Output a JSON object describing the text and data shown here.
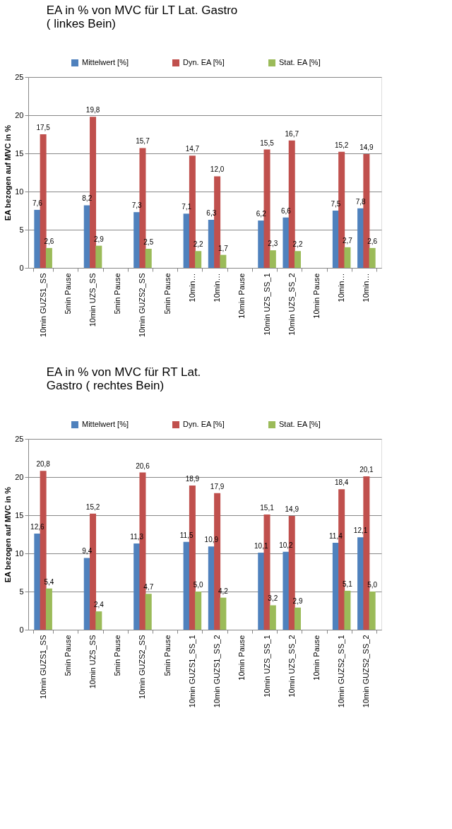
{
  "chart_data": [
    {
      "type": "bar",
      "title": "EA in % von MVC für LT Lat. Gastro ( linkes   Bein)",
      "ylabel": "EA bezogen auf MVC in %",
      "categories": [
        "10min GUZS1_SS",
        "5min Pause",
        "10min UZS_SS",
        "5min Pause",
        "10min GUZS2_SS",
        "5min Pause",
        "10min…",
        "10min…",
        "10min Pause",
        "10min UZS_SS_1",
        "10min UZS_SS_2",
        "10min Pause",
        "10min…",
        "10min…"
      ],
      "series": [
        {
          "name": "Mittelwert [%]",
          "color": "#4f81bd",
          "values": [
            7.6,
            null,
            8.2,
            null,
            7.3,
            null,
            7.1,
            6.3,
            null,
            6.2,
            6.6,
            null,
            7.5,
            7.8
          ],
          "value_labels": [
            "7,6",
            null,
            "8,2",
            null,
            "7,3",
            null,
            "7,1",
            "6,3",
            null,
            "6,2",
            "6,6",
            null,
            "7,5",
            "7,8"
          ]
        },
        {
          "name": "Dyn. EA [%]",
          "color": "#c0504d",
          "values": [
            17.5,
            null,
            19.8,
            null,
            15.7,
            null,
            14.7,
            12.0,
            null,
            15.5,
            16.7,
            null,
            15.2,
            14.9
          ],
          "value_labels": [
            "17,5",
            null,
            "19,8",
            null,
            "15,7",
            null,
            "14,7",
            "12,0",
            null,
            "15,5",
            "16,7",
            null,
            "15,2",
            "14,9"
          ]
        },
        {
          "name": "Stat. EA [%]",
          "color": "#9bbb59",
          "values": [
            2.6,
            null,
            2.9,
            null,
            2.5,
            null,
            2.2,
            1.7,
            null,
            2.3,
            2.2,
            null,
            2.7,
            2.6
          ],
          "value_labels": [
            "2,6",
            null,
            "2,9",
            null,
            "2,5",
            null,
            "2,2",
            "1,7",
            null,
            "2,3",
            "2,2",
            null,
            "2,7",
            "2,6"
          ]
        }
      ],
      "ylim": [
        0,
        25
      ],
      "yticks": [
        0,
        5,
        10,
        15,
        20,
        25
      ],
      "grid": "y",
      "legend": "top"
    },
    {
      "type": "bar",
      "title": "EA in % von MVC für RT Lat. Gastro ( rechtes   Bein)",
      "ylabel": "EA bezogen auf MVC in %",
      "categories": [
        "10min GUZS1_SS",
        "5min Pause",
        "10min UZS_SS",
        "5min Pause",
        "10min GUZS2_SS",
        "5min Pause",
        "10min GUZS1_SS_1",
        "10min GUZS1_SS_2",
        "10min Pause",
        "10min UZS_SS_1",
        "10min UZS_SS_2",
        "10min Pause",
        "10min GUZS2_SS_1",
        "10min GUZS2_SS_2"
      ],
      "series": [
        {
          "name": "Mittelwert [%]",
          "color": "#4f81bd",
          "values": [
            12.6,
            null,
            9.4,
            null,
            11.3,
            null,
            11.5,
            10.9,
            null,
            10.1,
            10.2,
            null,
            11.4,
            12.1
          ],
          "value_labels": [
            "12,6",
            null,
            "9,4",
            null,
            "11,3",
            null,
            "11,5",
            "10,9",
            null,
            "10,1",
            "10,2",
            null,
            "11,4",
            "12,1"
          ]
        },
        {
          "name": "Dyn. EA [%]",
          "color": "#c0504d",
          "values": [
            20.8,
            null,
            15.2,
            null,
            20.6,
            null,
            18.9,
            17.9,
            null,
            15.1,
            14.9,
            null,
            18.4,
            20.1
          ],
          "value_labels": [
            "20,8",
            null,
            "15,2",
            null,
            "20,6",
            null,
            "18,9",
            "17,9",
            null,
            "15,1",
            "14,9",
            null,
            "18,4",
            "20,1"
          ]
        },
        {
          "name": "Stat. EA [%]",
          "color": "#9bbb59",
          "values": [
            5.4,
            null,
            2.4,
            null,
            4.7,
            null,
            5.0,
            4.2,
            null,
            3.2,
            2.9,
            null,
            5.1,
            5.0
          ],
          "value_labels": [
            "5,4",
            null,
            "2,4",
            null,
            "4,7",
            null,
            "5,0",
            "4,2",
            null,
            "3,2",
            "2,9",
            null,
            "5,1",
            "5,0"
          ]
        }
      ],
      "ylim": [
        0,
        25
      ],
      "yticks": [
        0,
        5,
        10,
        15,
        20,
        25
      ],
      "grid": "y",
      "legend": "top"
    }
  ]
}
